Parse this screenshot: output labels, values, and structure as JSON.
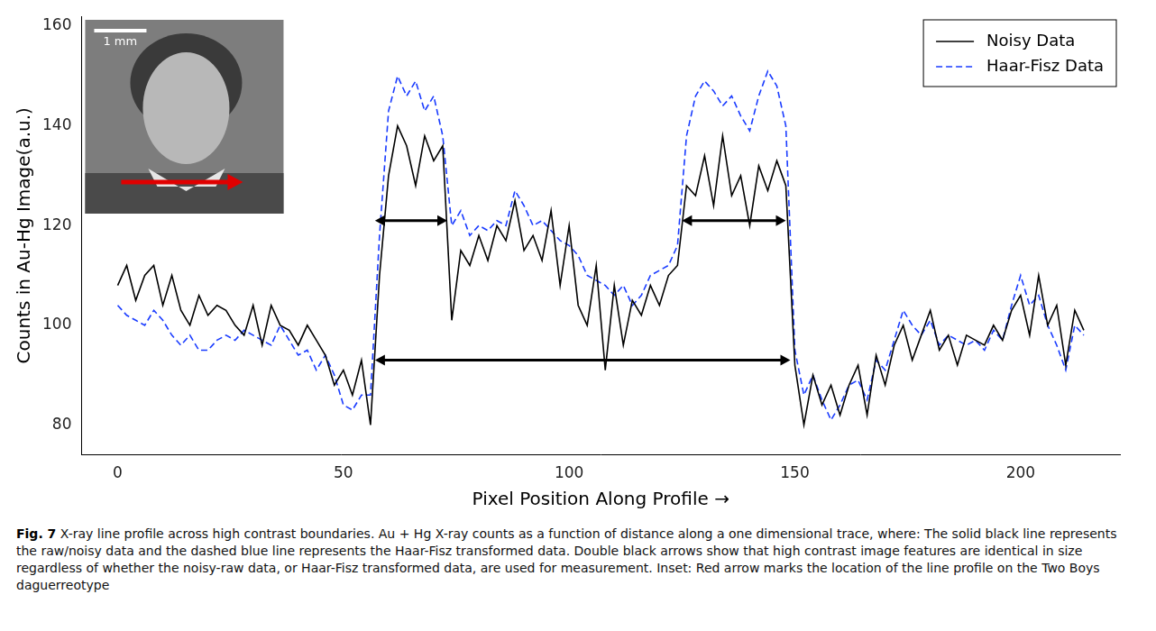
{
  "chart_data": {
    "type": "line",
    "x_label": "Pixel Position Along Profile →",
    "y_label": "Counts in Au-Hg Image(a.u.)",
    "x": [
      0,
      2,
      4,
      6,
      8,
      10,
      12,
      14,
      16,
      18,
      20,
      22,
      24,
      26,
      28,
      30,
      32,
      34,
      36,
      38,
      40,
      42,
      44,
      46,
      48,
      50,
      52,
      54,
      56,
      58,
      60,
      62,
      64,
      66,
      68,
      70,
      72,
      74,
      76,
      78,
      80,
      82,
      84,
      86,
      88,
      90,
      92,
      94,
      96,
      98,
      100,
      102,
      104,
      106,
      108,
      110,
      112,
      114,
      116,
      118,
      120,
      122,
      124,
      126,
      128,
      130,
      132,
      134,
      136,
      138,
      140,
      142,
      144,
      146,
      148,
      150,
      152,
      154,
      156,
      158,
      160,
      162,
      164,
      166,
      168,
      170,
      172,
      174,
      176,
      178,
      180,
      182,
      184,
      186,
      188,
      190,
      192,
      194,
      196,
      198,
      200,
      202,
      204,
      206,
      208,
      210,
      212,
      214
    ],
    "series": [
      {
        "name": "Noisy Data",
        "color": "#000000",
        "line_style": "solid",
        "values": [
          108,
          112,
          105,
          110,
          112,
          104,
          110,
          103,
          100,
          106,
          102,
          104,
          103,
          100,
          98,
          104,
          96,
          104,
          100,
          99,
          96,
          100,
          97,
          94,
          88,
          91,
          86,
          93,
          80,
          110,
          130,
          140,
          136,
          128,
          138,
          133,
          136,
          101,
          115,
          112,
          118,
          113,
          120,
          117,
          125,
          115,
          118,
          113,
          123,
          108,
          120,
          104,
          100,
          112,
          91,
          108,
          96,
          105,
          102,
          108,
          104,
          110,
          112,
          128,
          126,
          134,
          124,
          138,
          126,
          130,
          120,
          132,
          127,
          133,
          128,
          92,
          80,
          90,
          84,
          88,
          82,
          88,
          92,
          82,
          94,
          88,
          96,
          100,
          93,
          98,
          103,
          95,
          98,
          92,
          98,
          97,
          96,
          100,
          97,
          103,
          106,
          98,
          110,
          100,
          104,
          92,
          103,
          99
        ]
      },
      {
        "name": "Haar-Fisz Data",
        "color": "#1a3cff",
        "line_style": "dashed",
        "values": [
          104,
          102,
          101,
          100,
          103,
          101,
          98,
          96,
          98,
          95,
          95,
          97,
          98,
          97,
          99,
          98,
          97,
          96,
          100,
          97,
          94,
          95,
          91,
          94,
          90,
          84,
          83,
          86,
          86,
          118,
          143,
          150,
          146,
          149,
          143,
          146,
          138,
          120,
          123,
          118,
          120,
          119,
          121,
          120,
          127,
          124,
          120,
          121,
          119,
          117,
          116,
          114,
          110,
          109,
          108,
          106,
          108,
          104,
          106,
          110,
          111,
          112,
          116,
          138,
          146,
          149,
          147,
          144,
          146,
          142,
          139,
          146,
          151,
          148,
          140,
          95,
          86,
          90,
          85,
          81,
          84,
          88,
          89,
          85,
          93,
          91,
          97,
          103,
          100,
          98,
          101,
          96,
          98,
          97,
          96,
          97,
          95,
          99,
          97,
          104,
          110,
          104,
          106,
          100,
          96,
          91,
          100,
          98
        ]
      }
    ],
    "xlim": [
      -8,
      222
    ],
    "ylim": [
      74,
      162
    ],
    "xticks": [
      0,
      50,
      100,
      150,
      200
    ],
    "yticks": [
      80,
      100,
      120,
      140,
      160
    ],
    "grid": false,
    "legend": "top-right",
    "arrows": [
      {
        "x": [
          57,
          73
        ],
        "y": 121
      },
      {
        "x": [
          125,
          148
        ],
        "y": 121
      },
      {
        "x": [
          57,
          149
        ],
        "y": 93
      }
    ],
    "inset": {
      "scale_label": "1 mm"
    }
  },
  "caption": {
    "label": "Fig. 7",
    "text": "X-ray line profile across high contrast boundaries. Au + Hg X-ray counts as a function of distance along a one dimensional trace, where: The solid black line represents the raw/noisy data and the dashed blue line represents the Haar-Fisz transformed data. Double black arrows show that high contrast image features are identical in size regardless of whether the noisy-raw data, or Haar-Fisz transformed data, are used for measurement. Inset: Red arrow marks the location of the line profile on the Two Boys daguerreotype"
  }
}
